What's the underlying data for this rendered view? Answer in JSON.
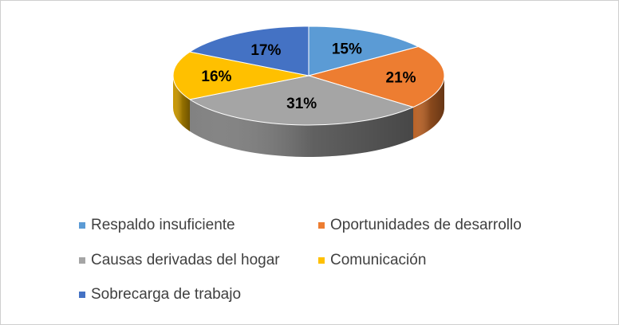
{
  "chart_data": {
    "type": "pie",
    "style": "3d",
    "title": "",
    "series": [
      {
        "label": "Respaldo insuficiente",
        "value": 15,
        "value_label": "15%",
        "color": "#5B9BD5"
      },
      {
        "label": "Oportunidades de desarrollo",
        "value": 21,
        "value_label": "21%",
        "color": "#ED7D31"
      },
      {
        "label": "Causas derivadas del hogar",
        "value": 31,
        "value_label": "31%",
        "color": "#A5A5A5"
      },
      {
        "label": "Comunicación",
        "value": 16,
        "value_label": "16%",
        "color": "#FFC000"
      },
      {
        "label": "Sobrecarga de trabajo",
        "value": 17,
        "value_label": "17%",
        "color": "#4472C4"
      }
    ],
    "legend_position": "bottom"
  }
}
